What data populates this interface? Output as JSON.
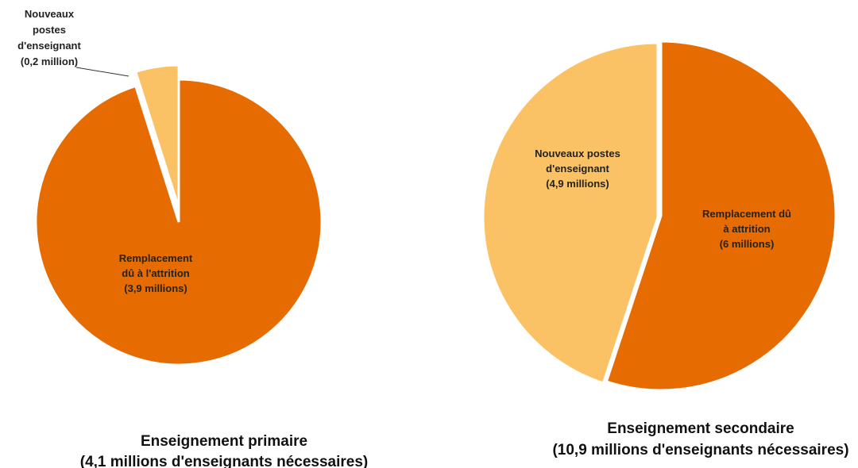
{
  "chart_data": [
    {
      "type": "pie",
      "title": "Enseignement primaire",
      "subtitle": "(4,1 millions d'enseignants nécessaires)",
      "slices": [
        {
          "label": [
            "Nouveaux",
            "postes",
            "d'enseignant",
            "(0,2 million)"
          ],
          "value": 0.2,
          "color": "#fbc265"
        },
        {
          "label": [
            "Remplacement",
            "dû à l'attrition",
            "(3,9 millions)"
          ],
          "value": 3.9,
          "color": "#e66c02"
        }
      ]
    },
    {
      "type": "pie",
      "title": "Enseignement secondaire",
      "subtitle": "(10,9 millions d'enseignants nécessaires)",
      "slices": [
        {
          "label": [
            "Nouveaux postes",
            "d'enseignant",
            "(4,9 millions)"
          ],
          "value": 4.9,
          "color": "#fbc265"
        },
        {
          "label": [
            "Remplacement dû",
            "à attrition",
            "(6 millions)"
          ],
          "value": 6,
          "color": "#e66c02"
        }
      ]
    }
  ]
}
